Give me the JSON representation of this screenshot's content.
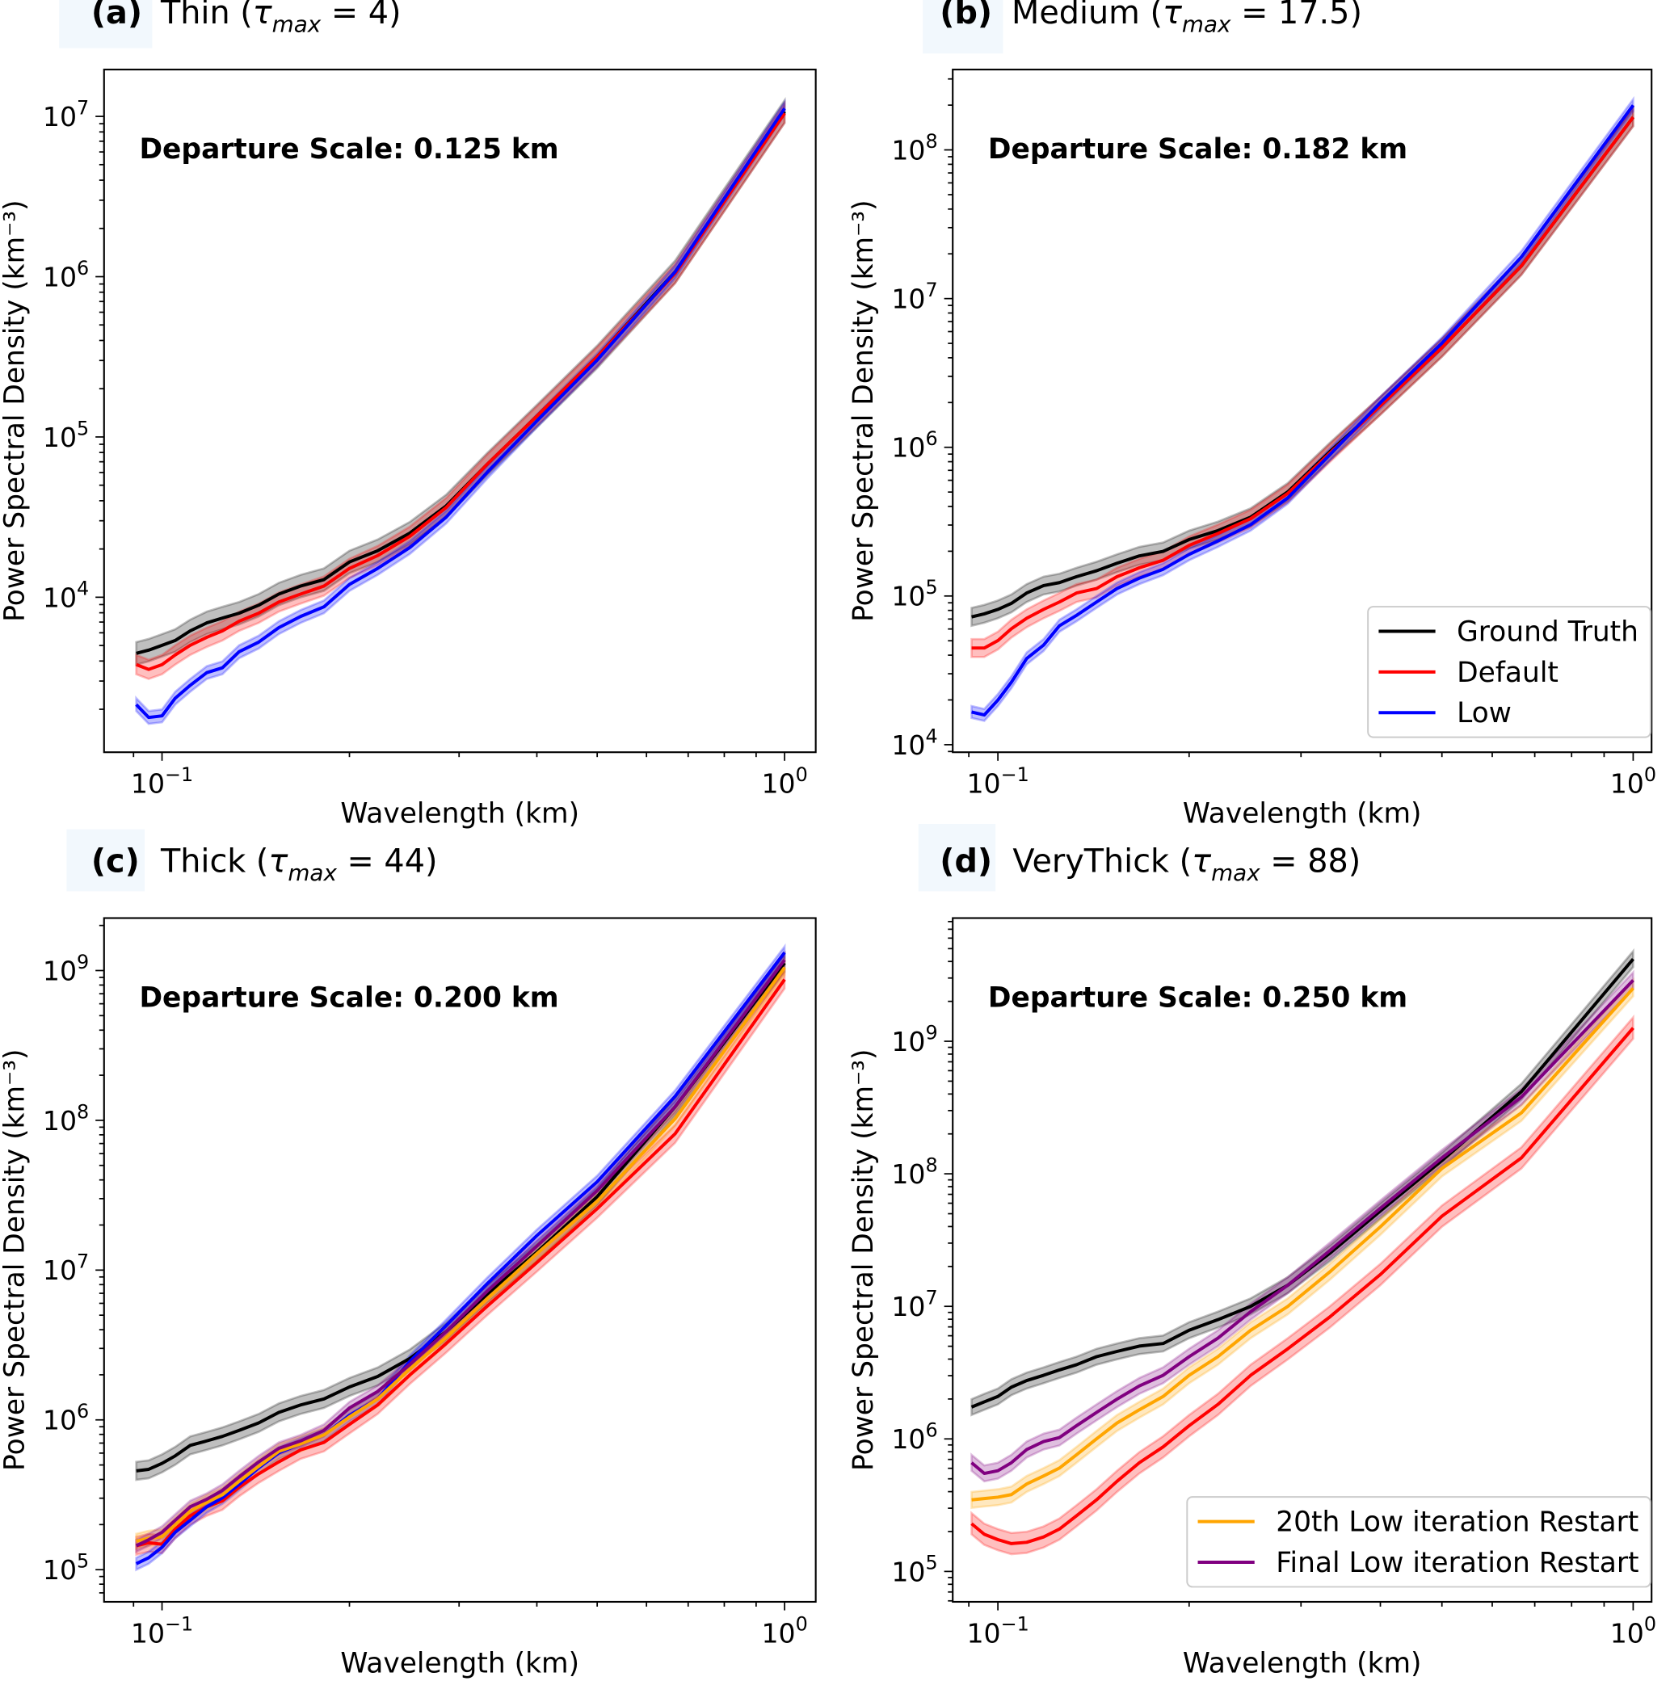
{
  "colors": {
    "Ground Truth": "#000000",
    "Default": "#ff0000",
    "Low": "#0000ff",
    "20th Low iteration Restart": "#ffa500",
    "Final Low iteration Restart": "#800080"
  },
  "chart_data": [
    {
      "type": "line",
      "panel_label": "(a)",
      "title_prefix": "Thin (",
      "tau": "τ",
      "tau_sub": "max",
      "title_suffix": " = 4)",
      "annotation": "Departure Scale: 0.125 km",
      "xlabel": "Wavelength (km)",
      "ylabel": "Power Spectral Density (km⁻³)",
      "xscale": "log",
      "yscale": "log",
      "xlim": [
        0.0807,
        1.122
      ],
      "ylim": [
        1079,
        19600000
      ],
      "xtick_exponents": [
        -1,
        0
      ],
      "ytick_exponents": [
        4,
        5,
        6,
        7
      ],
      "legend": null,
      "x": [
        0.0909,
        0.0952,
        0.1,
        0.105,
        0.111,
        0.118,
        0.125,
        0.133,
        0.143,
        0.154,
        0.167,
        0.182,
        0.2,
        0.222,
        0.25,
        0.286,
        0.333,
        0.4,
        0.5,
        0.667,
        1.0
      ],
      "series": [
        {
          "name": "Ground Truth",
          "band_log10": 0.07,
          "log10_values": [
            3.65,
            3.67,
            3.7,
            3.73,
            3.79,
            3.84,
            3.87,
            3.9,
            3.95,
            4.02,
            4.07,
            4.11,
            4.22,
            4.29,
            4.4,
            4.57,
            4.83,
            5.13,
            5.5,
            6.03,
            7.03
          ]
        },
        {
          "name": "Default",
          "band_log10": 0.06,
          "log10_values": [
            3.58,
            3.55,
            3.58,
            3.64,
            3.7,
            3.75,
            3.79,
            3.85,
            3.9,
            3.97,
            4.02,
            4.07,
            4.18,
            4.26,
            4.38,
            4.56,
            4.83,
            5.13,
            5.5,
            6.02,
            7.02
          ]
        },
        {
          "name": "Low",
          "band_log10": 0.04,
          "log10_values": [
            3.33,
            3.25,
            3.26,
            3.37,
            3.45,
            3.53,
            3.56,
            3.66,
            3.72,
            3.81,
            3.88,
            3.94,
            4.08,
            4.18,
            4.31,
            4.5,
            4.78,
            5.1,
            5.48,
            6.03,
            7.05
          ]
        }
      ]
    },
    {
      "type": "line",
      "panel_label": "(b)",
      "title_prefix": "Medium (",
      "tau": "τ",
      "tau_sub": "max",
      "title_suffix": " = 17.5)",
      "annotation": "Departure Scale: 0.182 km",
      "xlabel": "Wavelength (km)",
      "ylabel": "Power Spectral Density (km⁻³)",
      "xscale": "log",
      "yscale": "log",
      "xlim": [
        0.0849,
        1.069
      ],
      "ylim": [
        8900,
        347000000
      ],
      "xtick_exponents": [
        -1,
        0
      ],
      "ytick_exponents": [
        4,
        5,
        6,
        7,
        8
      ],
      "legend": {
        "placement": "lower right",
        "entries": [
          "Ground Truth",
          "Default",
          "Low"
        ]
      },
      "x": [
        0.0909,
        0.0952,
        0.1,
        0.105,
        0.111,
        0.118,
        0.125,
        0.133,
        0.143,
        0.154,
        0.167,
        0.182,
        0.2,
        0.222,
        0.25,
        0.286,
        0.333,
        0.4,
        0.5,
        0.667,
        1.0
      ],
      "series": [
        {
          "name": "Ground Truth",
          "band_log10": 0.06,
          "log10_values": [
            4.86,
            4.88,
            4.91,
            4.95,
            5.02,
            5.07,
            5.09,
            5.13,
            5.17,
            5.22,
            5.27,
            5.3,
            5.38,
            5.44,
            5.53,
            5.7,
            5.97,
            6.28,
            6.67,
            7.22,
            8.22
          ]
        },
        {
          "name": "Default",
          "band_log10": 0.06,
          "log10_values": [
            4.65,
            4.65,
            4.7,
            4.78,
            4.85,
            4.91,
            4.96,
            5.02,
            5.05,
            5.13,
            5.19,
            5.24,
            5.34,
            5.42,
            5.52,
            5.69,
            5.96,
            6.28,
            6.67,
            7.22,
            8.22
          ]
        },
        {
          "name": "Low",
          "band_log10": 0.04,
          "log10_values": [
            4.22,
            4.2,
            4.3,
            4.42,
            4.58,
            4.67,
            4.8,
            4.87,
            4.96,
            5.05,
            5.12,
            5.18,
            5.28,
            5.37,
            5.48,
            5.66,
            5.95,
            6.3,
            6.7,
            7.28,
            8.3
          ]
        }
      ]
    },
    {
      "type": "line",
      "panel_label": "(c)",
      "title_prefix": "Thick (",
      "tau": "τ",
      "tau_sub": "max",
      "title_suffix": " = 44)",
      "annotation": "Departure Scale: 0.200 km",
      "xlabel": "Wavelength (km)",
      "ylabel": "Power Spectral Density (km⁻³)",
      "xscale": "log",
      "yscale": "log",
      "xlim": [
        0.0807,
        1.122
      ],
      "ylim": [
        61000,
        2240000000
      ],
      "xtick_exponents": [
        -1,
        0
      ],
      "ytick_exponents": [
        5,
        6,
        7,
        8,
        9
      ],
      "legend": null,
      "x": [
        0.0909,
        0.0952,
        0.1,
        0.105,
        0.111,
        0.118,
        0.125,
        0.133,
        0.143,
        0.154,
        0.167,
        0.182,
        0.2,
        0.222,
        0.25,
        0.286,
        0.333,
        0.4,
        0.5,
        0.667,
        1.0
      ],
      "series": [
        {
          "name": "Ground Truth",
          "band_log10": 0.06,
          "log10_values": [
            5.66,
            5.67,
            5.71,
            5.76,
            5.83,
            5.86,
            5.89,
            5.93,
            5.98,
            6.05,
            6.1,
            6.14,
            6.22,
            6.29,
            6.41,
            6.59,
            6.84,
            7.12,
            7.49,
            8.09,
            9.05
          ]
        },
        {
          "name": "Default",
          "band_log10": 0.06,
          "log10_values": [
            5.16,
            5.18,
            5.17,
            5.27,
            5.36,
            5.42,
            5.46,
            5.55,
            5.64,
            5.72,
            5.8,
            5.85,
            5.97,
            6.1,
            6.3,
            6.51,
            6.76,
            7.05,
            7.41,
            7.91,
            8.94
          ]
        },
        {
          "name": "Low",
          "band_log10": 0.04,
          "log10_values": [
            5.04,
            5.08,
            5.15,
            5.25,
            5.33,
            5.42,
            5.48,
            5.57,
            5.68,
            5.78,
            5.84,
            5.9,
            6.03,
            6.14,
            6.39,
            6.63,
            6.91,
            7.23,
            7.59,
            8.16,
            9.12
          ]
        },
        {
          "name": "20th Low iteration Restart",
          "band_log10": 0.05,
          "log10_values": [
            5.19,
            5.21,
            5.22,
            5.3,
            5.39,
            5.45,
            5.5,
            5.59,
            5.69,
            5.79,
            5.84,
            5.9,
            6.02,
            6.14,
            6.34,
            6.55,
            6.81,
            7.11,
            7.46,
            8.01,
            9.02
          ]
        },
        {
          "name": "Final Low iteration Restart",
          "band_log10": 0.04,
          "log10_values": [
            5.16,
            5.2,
            5.25,
            5.33,
            5.42,
            5.47,
            5.53,
            5.62,
            5.72,
            5.81,
            5.86,
            5.93,
            6.08,
            6.19,
            6.37,
            6.59,
            6.86,
            7.16,
            7.53,
            8.09,
            9.07
          ]
        }
      ]
    },
    {
      "type": "line",
      "panel_label": "(d)",
      "title_prefix": "VeryThick (",
      "tau": "τ",
      "tau_sub": "max",
      "title_suffix": " = 88)",
      "annotation": "Departure Scale: 0.250 km",
      "xlabel": "Wavelength (km)",
      "ylabel": "Power Spectral Density (km⁻³)",
      "xscale": "log",
      "yscale": "log",
      "xlim": [
        0.0849,
        1.069
      ],
      "ylim": [
        59000,
        8500000000
      ],
      "xtick_exponents": [
        -1,
        0
      ],
      "ytick_exponents": [
        5,
        6,
        7,
        8,
        9
      ],
      "legend": {
        "placement": "lower right",
        "entries": [
          "20th Low iteration Restart",
          "Final Low iteration Restart"
        ]
      },
      "x": [
        0.0909,
        0.0952,
        0.1,
        0.105,
        0.111,
        0.118,
        0.125,
        0.133,
        0.143,
        0.154,
        0.167,
        0.182,
        0.2,
        0.222,
        0.25,
        0.286,
        0.333,
        0.4,
        0.5,
        0.667,
        1.0
      ],
      "series": [
        {
          "name": "Ground Truth",
          "band_log10": 0.06,
          "log10_values": [
            6.24,
            6.28,
            6.32,
            6.39,
            6.44,
            6.48,
            6.52,
            6.56,
            6.62,
            6.66,
            6.7,
            6.72,
            6.82,
            6.9,
            7.0,
            7.16,
            7.4,
            7.72,
            8.1,
            8.62,
            9.62
          ]
        },
        {
          "name": "Default",
          "band_log10": 0.08,
          "log10_values": [
            5.36,
            5.28,
            5.24,
            5.21,
            5.22,
            5.26,
            5.32,
            5.42,
            5.54,
            5.68,
            5.82,
            5.94,
            6.1,
            6.26,
            6.48,
            6.68,
            6.92,
            7.24,
            7.68,
            8.12,
            9.1
          ]
        },
        {
          "name": "20th Low iteration Restart",
          "band_log10": 0.06,
          "log10_values": [
            5.54,
            5.55,
            5.56,
            5.58,
            5.66,
            5.72,
            5.78,
            5.88,
            6.0,
            6.12,
            6.22,
            6.32,
            6.48,
            6.62,
            6.82,
            7.0,
            7.26,
            7.6,
            8.04,
            8.46,
            9.4
          ]
        },
        {
          "name": "Final Low iteration Restart",
          "band_log10": 0.06,
          "log10_values": [
            5.82,
            5.74,
            5.76,
            5.82,
            5.92,
            5.98,
            6.01,
            6.1,
            6.2,
            6.3,
            6.4,
            6.48,
            6.62,
            6.76,
            6.96,
            7.16,
            7.42,
            7.74,
            8.12,
            8.58,
            9.46
          ]
        }
      ]
    }
  ]
}
